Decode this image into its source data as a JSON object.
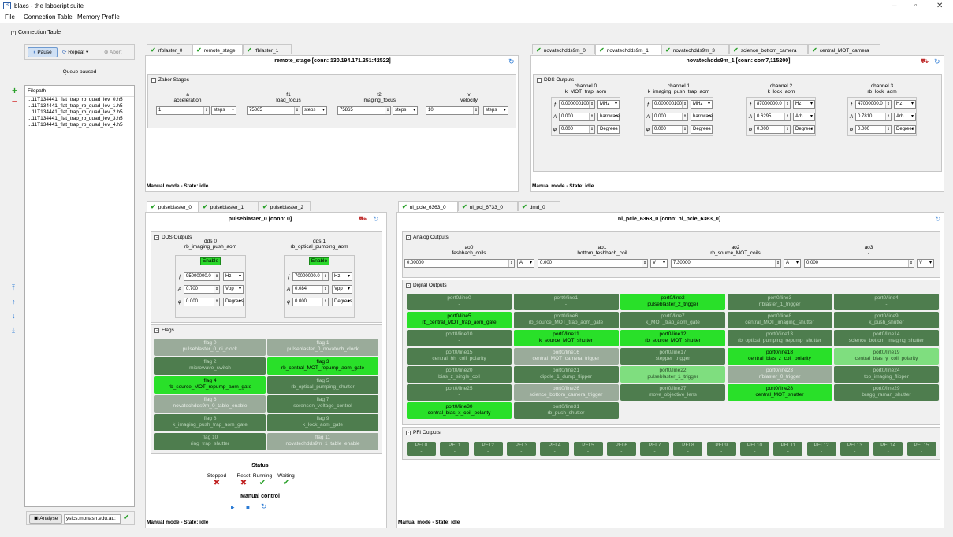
{
  "window": {
    "title": "blacs - the labscript suite",
    "icon": "app-icon",
    "minimize": "–",
    "maximize": "▫",
    "close": "✕"
  },
  "menu": [
    "File",
    "Connection Table",
    "Memory Profile"
  ],
  "connection_table_label": "Connection Table",
  "queue": {
    "pause": "Pause",
    "repeat": "Repeat",
    "abort": "Abort",
    "status": "Queue paused",
    "header": "Filepath",
    "files": [
      "...11T134441_flat_trap_rb_quad_lev_0.h5",
      "...11T134441_flat_trap_rb_quad_lev_1.h5",
      "...11T134441_flat_trap_rb_quad_lev_2.h5",
      "...11T134441_flat_trap_rb_quad_lev_3.h5",
      "...11T134441_flat_trap_rb_quad_lev_4.h5"
    ],
    "analyse": "Analyse",
    "analyse_url": "ysics.monash.edu.au:"
  },
  "tl": {
    "tabs": [
      "rfblaster_0",
      "remote_stage",
      "rfblaster_1"
    ],
    "header": "remote_stage [conn: 130.194.171.251:42522]",
    "group": "Zaber Stages",
    "channels": [
      {
        "name": "a",
        "label": "acceleration",
        "value": "1",
        "unit": "steps"
      },
      {
        "name": "f1",
        "label": "load_focus",
        "value": "75865",
        "unit": "steps"
      },
      {
        "name": "f2",
        "label": "imaging_focus",
        "value": "75865",
        "unit": "steps"
      },
      {
        "name": "v",
        "label": "velocity",
        "value": "10",
        "unit": "steps"
      }
    ],
    "status": "Manual mode - State: idle"
  },
  "tr": {
    "tabs": [
      "novatechdds9m_0",
      "novatechdds9m_1",
      "novatechdds9m_3",
      "science_bottom_camera",
      "central_MOT_camera"
    ],
    "header": "novatechdds9m_1 [conn: com7,115200]",
    "group": "DDS Outputs",
    "channels": [
      {
        "name": "channel 0",
        "label": "k_MOT_trap_aom",
        "f": "0.000000100",
        "fu": "MHz",
        "a": "0.000",
        "au": "hardware",
        "p": "0.000",
        "pu": "Degrees"
      },
      {
        "name": "channel 1",
        "label": "k_imaging_push_trap_aom",
        "f": "0.000000100",
        "fu": "MHz",
        "a": "0.000",
        "au": "hardware",
        "p": "0.000",
        "pu": "Degrees"
      },
      {
        "name": "channel 2",
        "label": "k_lock_aom",
        "f": "87000000.0",
        "fu": "Hz",
        "a": "0.6295",
        "au": "Arb",
        "p": "0.000",
        "pu": "Degrees"
      },
      {
        "name": "channel 3",
        "label": "rb_lock_aom",
        "f": "47000000.0",
        "fu": "Hz",
        "a": "0.7810",
        "au": "Arb",
        "p": "0.000",
        "pu": "Degrees"
      }
    ],
    "status": "Manual mode - State: idle"
  },
  "bl": {
    "tabs": [
      "pulseblaster_0",
      "pulseblaster_1",
      "pulseblaster_2"
    ],
    "header": "pulseblaster_0 [conn: 0]",
    "dds_group": "DDS Outputs",
    "dds": [
      {
        "name": "dds 0",
        "label": "rb_imaging_push_aom",
        "enable": "Enable",
        "f": "95000000.0",
        "fu": "Hz",
        "a": "0.700",
        "au": "Vpp",
        "p": "0.000",
        "pu": "Degrees"
      },
      {
        "name": "dds 1",
        "label": "rb_optical_pumping_aom",
        "enable": "Enable",
        "f": "70000000.0",
        "fu": "Hz",
        "a": "0.084",
        "au": "Vpp",
        "p": "0.000",
        "pu": "Degrees"
      }
    ],
    "flags_group": "Flags",
    "flags": [
      [
        "flag 0",
        "pulseblaster_0_ni_clock",
        "grey"
      ],
      [
        "flag 1",
        "pulseblaster_0_novatech_clock",
        "grey"
      ],
      [
        "flag 2",
        "microwave_switch",
        "dark"
      ],
      [
        "flag 3",
        "rb_central_MOT_repump_aom_gate",
        "green"
      ],
      [
        "flag 4",
        "rb_source_MOT_repump_aom_gate",
        "green"
      ],
      [
        "flag 5",
        "rb_optical_pumping_shutter",
        "dark"
      ],
      [
        "flag 6",
        "novatechdds9m_0_table_enable",
        "grey"
      ],
      [
        "flag 7",
        "sorensen_voltage_control",
        "dark"
      ],
      [
        "flag 8",
        "k_imaging_push_trap_aom_gate",
        "dark"
      ],
      [
        "flag 9",
        "k_lock_aom_gate",
        "dark"
      ],
      [
        "flag 10",
        "ring_trap_shutter",
        "dark"
      ],
      [
        "flag 11",
        "novatechdds9m_1_table_enable",
        "grey"
      ]
    ],
    "status_title": "Status",
    "status_labels": [
      "Stopped",
      "Reset",
      "Running",
      "Waiting"
    ],
    "manual_control": "Manual control",
    "status": "Manual mode - State: idle"
  },
  "br": {
    "tabs": [
      "ni_pcie_6363_0",
      "ni_pci_6733_0",
      "dmd_0"
    ],
    "header": "ni_pcie_6363_0 [conn: ni_pcie_6363_0]",
    "analog_group": "Analog Outputs",
    "analog": [
      {
        "name": "ao0",
        "label": "feshbach_coils",
        "value": "0.00000",
        "unit": "A"
      },
      {
        "name": "ao1",
        "label": "bottom_feshbach_coil",
        "value": "0.000",
        "unit": "V"
      },
      {
        "name": "ao2",
        "label": "rb_source_MOT_coils",
        "value": "7.30000",
        "unit": "A"
      },
      {
        "name": "ao3",
        "label": "-",
        "value": "0.000",
        "unit": "V"
      }
    ],
    "digital_group": "Digital Outputs",
    "digital": [
      [
        "port0/line0",
        "-",
        "dark"
      ],
      [
        "port0/line1",
        "-",
        "dark"
      ],
      [
        "port0/line2",
        "pulseblaster_2_trigger",
        "green"
      ],
      [
        "port0/line3",
        "rfblaster_1_trigger",
        "dark"
      ],
      [
        "port0/line4",
        "-",
        "dark"
      ],
      [
        "port0/line5",
        "rb_central_MOT_trap_aom_gate",
        "green"
      ],
      [
        "port0/line6",
        "rb_source_MOT_trap_aom_gate",
        "dark"
      ],
      [
        "port0/line7",
        "k_MOT_trap_aom_gate",
        "dark"
      ],
      [
        "port0/line8",
        "central_MOT_imaging_shutter",
        "dark"
      ],
      [
        "port0/line9",
        "k_push_shutter",
        "dark"
      ],
      [
        "port0/line10",
        "-",
        "dark"
      ],
      [
        "port0/line11",
        "k_source_MOT_shutter",
        "green"
      ],
      [
        "port0/line12",
        "rb_source_MOT_shutter",
        "green"
      ],
      [
        "port0/line13",
        "rb_optical_pumping_repump_shutter",
        "dark"
      ],
      [
        "port0/line14",
        "science_bottom_imaging_shutter",
        "dark"
      ],
      [
        "port0/line15",
        "central_hh_coil_polarity",
        "dark"
      ],
      [
        "port0/line16",
        "central_MOT_camera_trigger",
        "grey"
      ],
      [
        "port0/line17",
        "stepper_trigger",
        "dark"
      ],
      [
        "port0/line18",
        "central_bias_z_coil_polarity",
        "green"
      ],
      [
        "port0/line19",
        "central_bias_y_coil_polarity",
        "light"
      ],
      [
        "port0/line20",
        "bias_z_single_coil",
        "dark"
      ],
      [
        "port0/line21",
        "dipole_1_dump_flipper",
        "dark"
      ],
      [
        "port0/line22",
        "pulseblaster_1_trigger",
        "light"
      ],
      [
        "port0/line23",
        "rfblaster_0_trigger",
        "grey"
      ],
      [
        "port0/line24",
        "top_imaging_flipper",
        "dark"
      ],
      [
        "port0/line25",
        "-",
        "dark"
      ],
      [
        "port0/line26",
        "science_bottom_camera_trigger",
        "grey"
      ],
      [
        "port0/line27",
        "move_objective_lens",
        "dark"
      ],
      [
        "port0/line28",
        "central_MOT_shutter",
        "green"
      ],
      [
        "port0/line29",
        "bragg_raman_shutter",
        "dark"
      ],
      [
        "port0/line30",
        "central_bias_x_coil_polarity",
        "green"
      ],
      [
        "port0/line31",
        "rb_push_shutter",
        "dark"
      ]
    ],
    "pfi_group": "PFI Outputs",
    "pfi": [
      "PFI 0",
      "PFI 1",
      "PFI 2",
      "PFI 3",
      "PFI 4",
      "PFI 5",
      "PFI 6",
      "PFI 7",
      "PFI 8",
      "PFI 9",
      "PFI 10",
      "PFI 11",
      "PFI 12",
      "PFI 13",
      "PFI 14",
      "PFI 15"
    ],
    "status": "Manual mode - State: idle"
  }
}
